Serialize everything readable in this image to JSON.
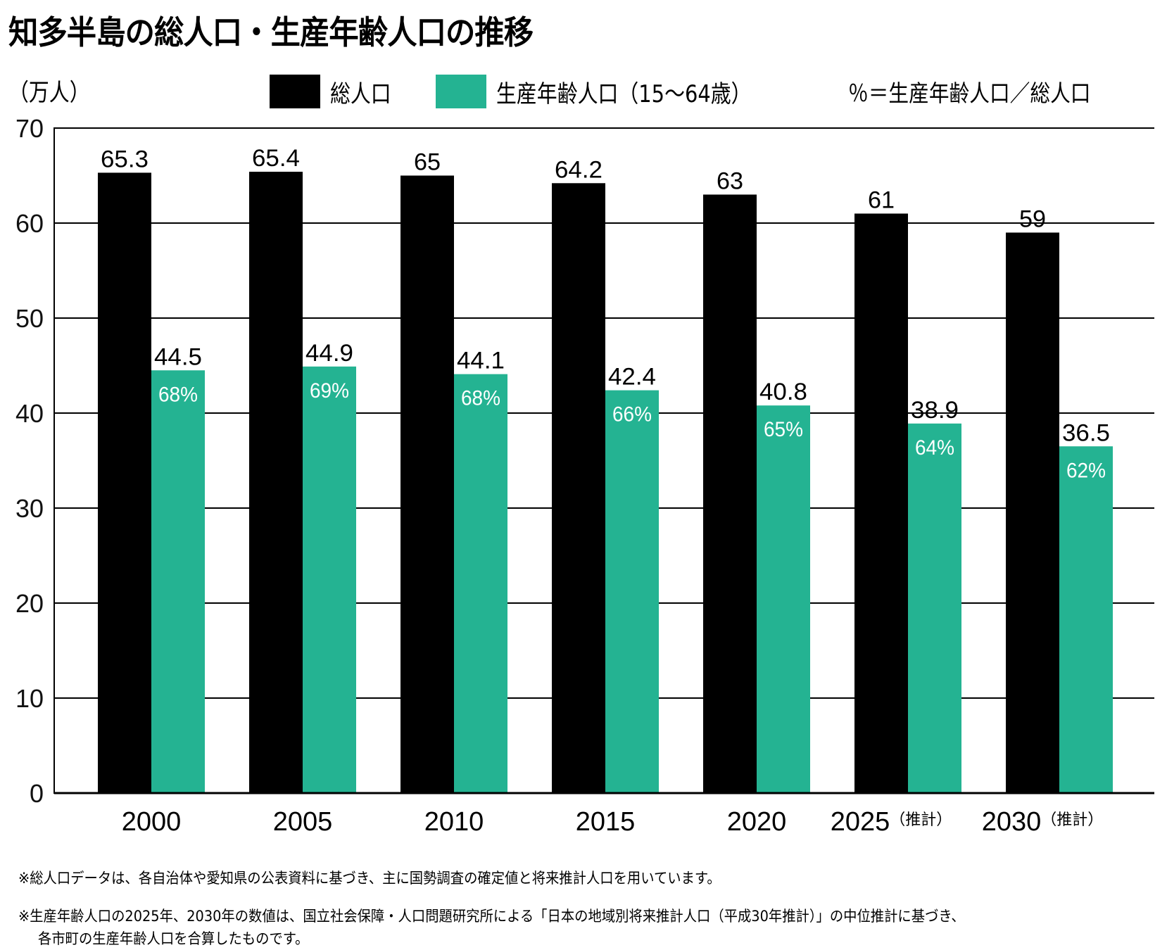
{
  "chart_data": {
    "type": "bar",
    "title": "知多半島の総人口・生産年齢人口の推移",
    "ylabel": "（万人）",
    "xlabel": "",
    "ylim": [
      0,
      70
    ],
    "yticks": [
      0,
      10,
      20,
      30,
      40,
      50,
      60,
      70
    ],
    "grid": true,
    "legend_placement": "top",
    "categories": [
      "2000",
      "2005",
      "2010",
      "2015",
      "2020",
      "2025",
      "2030"
    ],
    "category_suffixes": [
      "",
      "",
      "",
      "",
      "",
      "（推計）",
      "（推計）"
    ],
    "series": [
      {
        "name": "総人口",
        "color": "#000000",
        "values": [
          65.3,
          65.4,
          65,
          64.2,
          63,
          61,
          59
        ],
        "value_labels": [
          "65.3",
          "65.4",
          "65",
          "64.2",
          "63",
          "61",
          "59"
        ]
      },
      {
        "name": "生産年齢人口（15〜64歳）",
        "color": "#24b392",
        "values": [
          44.5,
          44.9,
          44.1,
          42.4,
          40.8,
          38.9,
          36.5
        ],
        "value_labels": [
          "44.5",
          "44.9",
          "44.1",
          "42.4",
          "40.8",
          "38.9",
          "36.5"
        ],
        "percent_labels": [
          "68%",
          "69%",
          "68%",
          "66%",
          "65%",
          "64%",
          "62%"
        ]
      }
    ],
    "legend_note": "％＝生産年齢人口／総人口",
    "footnotes": [
      "※総人口データは、各自治体や愛知県の公表資料に基づき、主に国勢調査の確定値と将来推計人口を用いています。",
      "※生産年齢人口の2025年、2030年の数値は、国立社会保障・人口問題研究所による「日本の地域別将来推計人口（平成30年推計）」の中位推計に基づき、",
      "各市町の生産年齢人口を合算したものです。"
    ]
  }
}
